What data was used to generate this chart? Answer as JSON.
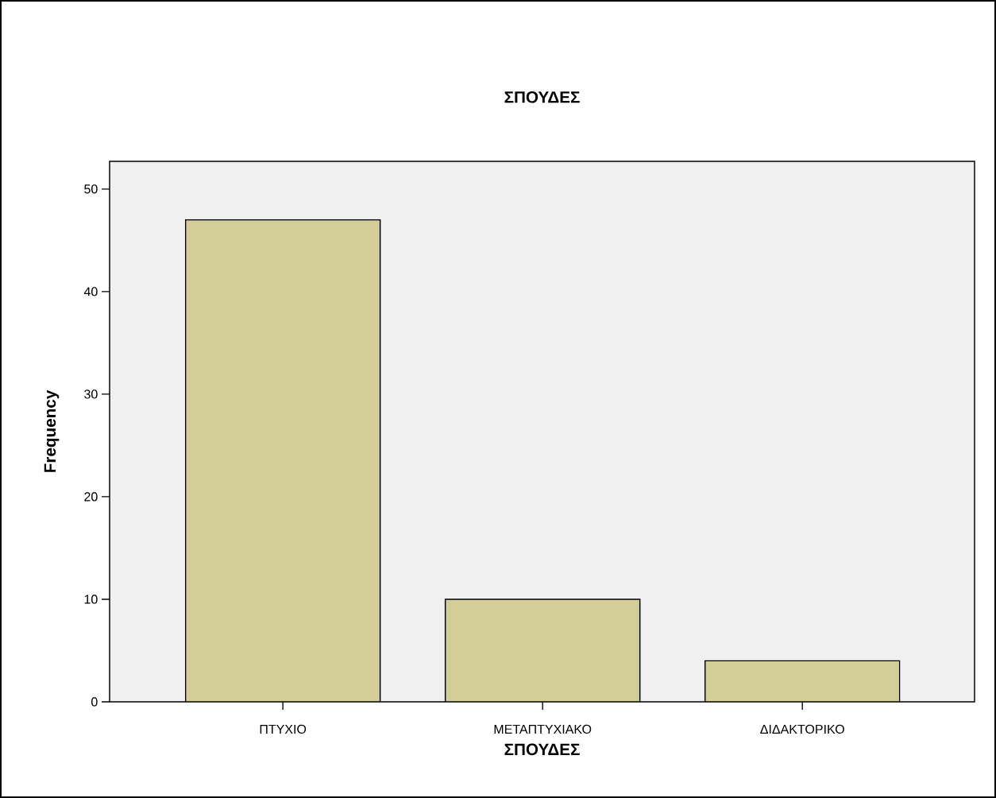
{
  "chart_data": {
    "type": "bar",
    "title": "ΣΠΟΥΔΕΣ",
    "xlabel": "ΣΠΟΥΔΕΣ",
    "ylabel": "Frequency",
    "categories": [
      "ΠΤΥΧΙΟ",
      "ΜΕΤΑΠΤΥΧΙΑΚΟ",
      "ΔΙΔΑΚΤΟΡΙΚΟ"
    ],
    "values": [
      47,
      10,
      4
    ],
    "color": "#d3ce97",
    "ylim": [
      0,
      52.7
    ],
    "yticks": [
      0,
      10,
      20,
      30,
      40,
      50
    ],
    "grid": false
  }
}
